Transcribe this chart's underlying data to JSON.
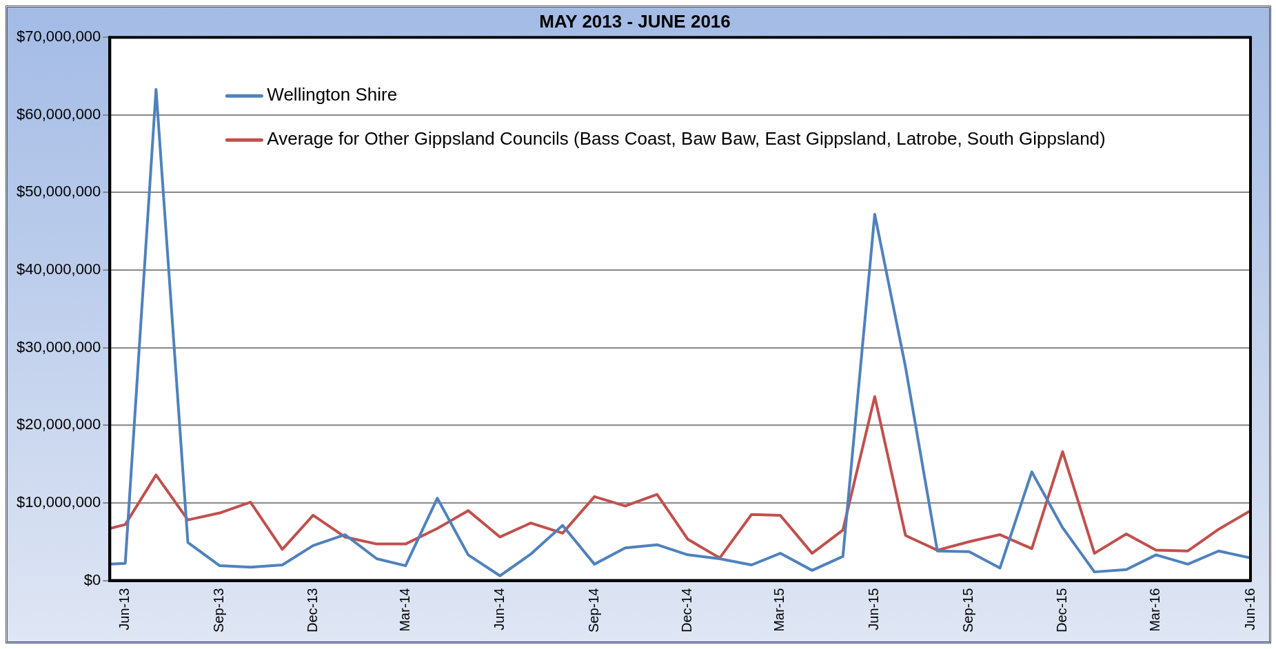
{
  "chart_data": {
    "type": "line",
    "title": "MAY 2013 - JUNE 2016",
    "x": [
      "2013-05-17",
      "2013-06",
      "2013-07",
      "2013-08",
      "2013-09",
      "2013-10",
      "2013-11",
      "2013-12",
      "2014-01",
      "2014-02",
      "2014-03",
      "2014-04",
      "2014-05",
      "2014-06",
      "2014-07",
      "2014-08",
      "2014-09",
      "2014-10",
      "2014-11",
      "2014-12",
      "2015-01",
      "2015-02",
      "2015-03",
      "2015-04",
      "2015-05",
      "2015-06",
      "2015-07",
      "2015-08",
      "2015-09",
      "2015-10",
      "2015-11",
      "2015-12",
      "2016-01",
      "2016-02",
      "2016-03",
      "2016-04",
      "2016-05",
      "2016-06"
    ],
    "series": [
      {
        "name": "Wellington Shire",
        "color": "#4f81bd",
        "values": [
          2100000,
          2200000,
          63300000,
          4900000,
          1900000,
          1700000,
          2000000,
          4500000,
          5900000,
          2800000,
          1900000,
          10600000,
          3300000,
          600000,
          3400000,
          7100000,
          2100000,
          4200000,
          4600000,
          3300000,
          2800000,
          2000000,
          3500000,
          1300000,
          3100000,
          47200000,
          27500000,
          3800000,
          3700000,
          1600000,
          14000000,
          6800000,
          1100000,
          1400000,
          3300000,
          2100000,
          3800000,
          2900000
        ]
      },
      {
        "name": "Average for Other Gippsland Councils (Bass Coast, Baw Baw, East Gippsland, Latrobe, South Gippsland)",
        "color": "#c0504d",
        "values": [
          6700000,
          7200000,
          13600000,
          7800000,
          8700000,
          10100000,
          4000000,
          8400000,
          5600000,
          4700000,
          4700000,
          6700000,
          9000000,
          5600000,
          7400000,
          6100000,
          10800000,
          9600000,
          11100000,
          5300000,
          2900000,
          8500000,
          8400000,
          3500000,
          6500000,
          23700000,
          5800000,
          3900000,
          5000000,
          5900000,
          4100000,
          16600000,
          3500000,
          6000000,
          3900000,
          3800000,
          6600000,
          9000000
        ]
      }
    ],
    "xlim": [
      "2013-05-17",
      "2016-06"
    ],
    "xticks": [
      {
        "value": "2013-06",
        "label": "Jun-13"
      },
      {
        "value": "2013-09",
        "label": "Sep-13"
      },
      {
        "value": "2013-12",
        "label": "Dec-13"
      },
      {
        "value": "2014-03",
        "label": "Mar-14"
      },
      {
        "value": "2014-06",
        "label": "Jun-14"
      },
      {
        "value": "2014-09",
        "label": "Sep-14"
      },
      {
        "value": "2014-12",
        "label": "Dec-14"
      },
      {
        "value": "2015-03",
        "label": "Mar-15"
      },
      {
        "value": "2015-06",
        "label": "Jun-15"
      },
      {
        "value": "2015-09",
        "label": "Sep-15"
      },
      {
        "value": "2015-12",
        "label": "Dec-15"
      },
      {
        "value": "2016-03",
        "label": "Mar-16"
      },
      {
        "value": "2016-06",
        "label": "Jun-16"
      }
    ],
    "ylim": [
      0,
      70000000
    ],
    "yticks": [
      {
        "value": 0,
        "label": "$0"
      },
      {
        "value": 10000000,
        "label": "$10,000,000"
      },
      {
        "value": 20000000,
        "label": "$20,000,000"
      },
      {
        "value": 30000000,
        "label": "$30,000,000"
      },
      {
        "value": 40000000,
        "label": "$40,000,000"
      },
      {
        "value": 50000000,
        "label": "$50,000,000"
      },
      {
        "value": 60000000,
        "label": "$60,000,000"
      },
      {
        "value": 70000000,
        "label": "$70,000,000"
      }
    ],
    "grid": "y",
    "legend": "top left",
    "marker": "none",
    "line_style": "solid"
  }
}
